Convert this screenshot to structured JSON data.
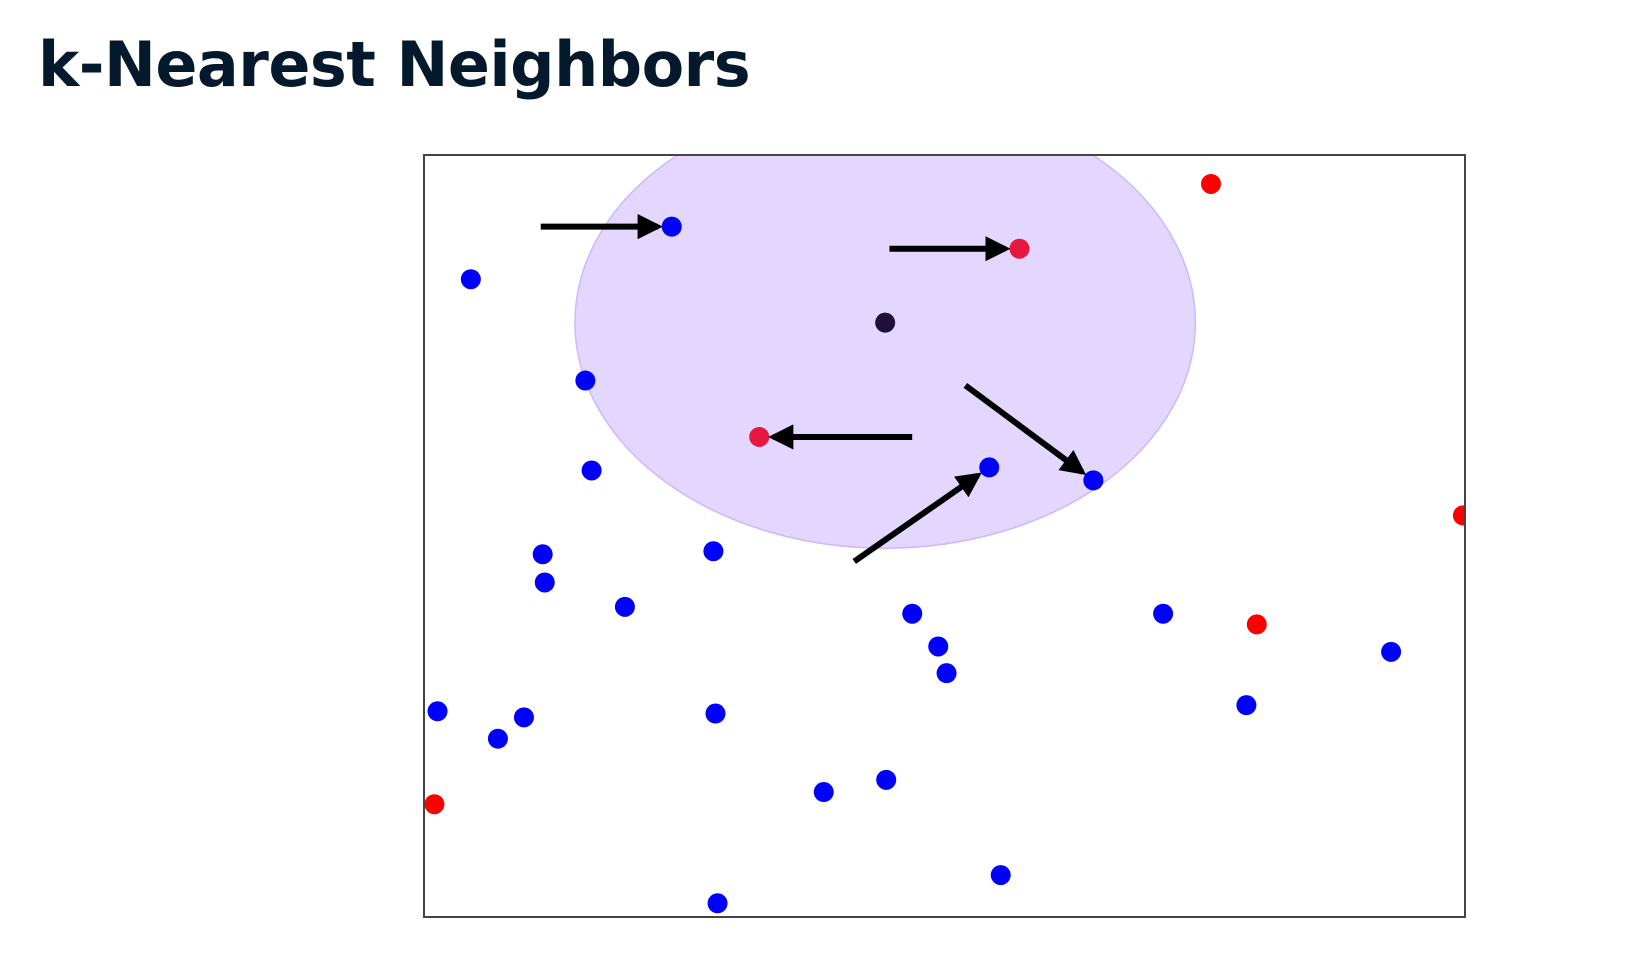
{
  "slide": {
    "title": "k-Nearest Neighbors"
  },
  "colors": {
    "title": "#05192d",
    "class_a": "#0000ff",
    "class_b": "#ff0000",
    "neighbor_b": "#e8173e",
    "query": "#1f0f3a",
    "neighborhood_fill": "#e3d6ff",
    "neighborhood_stroke": "#cdb8ff",
    "arrow": "#000000",
    "frame": "#444444"
  },
  "diagram": {
    "k": 5,
    "x_range": [
      0,
      100
    ],
    "y_range": [
      0,
      100
    ],
    "query_point": {
      "x": 44.3,
      "y": 78.0
    },
    "neighborhood_radius": {
      "x": 29.8,
      "y": 29.6
    },
    "neighbors": [
      {
        "x": 23.8,
        "y": 90.6,
        "class": "blue"
      },
      {
        "x": 57.2,
        "y": 87.7,
        "class": "red"
      },
      {
        "x": 32.2,
        "y": 63.0,
        "class": "red"
      },
      {
        "x": 54.3,
        "y": 59.0,
        "class": "blue"
      },
      {
        "x": 64.3,
        "y": 57.3,
        "class": "blue"
      }
    ],
    "points": [
      {
        "x": 75.6,
        "y": 96.2,
        "class": "red"
      },
      {
        "x": 4.5,
        "y": 83.7,
        "class": "blue"
      },
      {
        "x": 15.5,
        "y": 70.4,
        "class": "blue"
      },
      {
        "x": 16.1,
        "y": 58.6,
        "class": "blue"
      },
      {
        "x": 11.4,
        "y": 47.6,
        "class": "blue"
      },
      {
        "x": 11.6,
        "y": 43.9,
        "class": "blue"
      },
      {
        "x": 19.3,
        "y": 40.7,
        "class": "blue"
      },
      {
        "x": 27.8,
        "y": 48.0,
        "class": "blue"
      },
      {
        "x": 46.9,
        "y": 39.8,
        "class": "blue"
      },
      {
        "x": 49.4,
        "y": 35.5,
        "class": "blue"
      },
      {
        "x": 50.2,
        "y": 32.0,
        "class": "blue"
      },
      {
        "x": 71.0,
        "y": 39.8,
        "class": "blue"
      },
      {
        "x": 80.0,
        "y": 38.4,
        "class": "red"
      },
      {
        "x": 92.9,
        "y": 34.8,
        "class": "blue"
      },
      {
        "x": 79.0,
        "y": 27.8,
        "class": "blue"
      },
      {
        "x": 99.8,
        "y": 52.7,
        "class": "red"
      },
      {
        "x": 1.3,
        "y": 27.0,
        "class": "blue"
      },
      {
        "x": 9.6,
        "y": 26.2,
        "class": "blue"
      },
      {
        "x": 7.1,
        "y": 23.4,
        "class": "blue"
      },
      {
        "x": 28.0,
        "y": 26.7,
        "class": "blue"
      },
      {
        "x": 1.0,
        "y": 14.8,
        "class": "red"
      },
      {
        "x": 38.4,
        "y": 16.4,
        "class": "blue"
      },
      {
        "x": 44.4,
        "y": 18.0,
        "class": "blue"
      },
      {
        "x": 55.4,
        "y": 5.5,
        "class": "blue"
      },
      {
        "x": 28.2,
        "y": 1.8,
        "class": "blue"
      }
    ]
  }
}
